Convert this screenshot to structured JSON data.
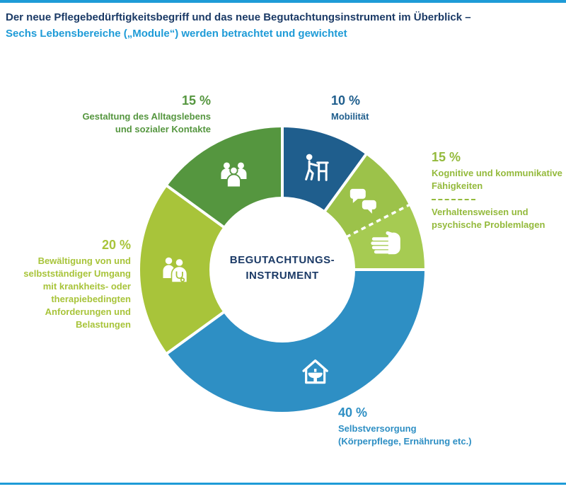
{
  "meta": {
    "language": "de",
    "accent_color": "#1e9bd7",
    "navy_color": "#1b3a66"
  },
  "header": {
    "title_line1": "Der neue Pflegebedürftigkeitsbegriff und das neue Begutachtungsinstrument im Überblick –",
    "title_line2": "Sechs Lebensbereiche („Module“) werden betrachtet und gewichtet",
    "title_color": "#1b3a66",
    "subtitle_color": "#1e9bd7"
  },
  "chart_data": {
    "type": "pie",
    "variant": "donut",
    "start_angle_deg": 0,
    "direction": "clockwise",
    "center_label": [
      "BEGUTACHTUNGS-",
      "INSTRUMENT"
    ],
    "center_label_color": "#1b3a66",
    "weights": [
      {
        "module": "Mobilität",
        "weight_pct": 10
      },
      {
        "module": "Kognitive und kommunikative Fähigkeiten / Verhaltensweisen und psychische Problemlagen",
        "weight_pct": 15
      },
      {
        "module": "Selbstversorgung (Körperpflege, Ernährung etc.)",
        "weight_pct": 40
      },
      {
        "module": "Bewältigung von und selbstständiger Umgang mit krankheits- oder therapiebedingten Anforderungen und Belastungen",
        "weight_pct": 20
      },
      {
        "module": "Gestaltung des Alltagslebens und sozialer Kontakte",
        "weight_pct": 15
      }
    ],
    "segments": [
      {
        "id": "mobilitaet",
        "label": "Mobilität",
        "display_value": "10 %",
        "value": 10,
        "color": "#1f5e8d",
        "icon": "walker-icon"
      },
      {
        "id": "kognitive-faehigkeiten",
        "label": "Kognitive und kommunikative Fähigkeiten",
        "group_display_value": "15 %",
        "value": 7.5,
        "color": "#9cc24a",
        "icon": "speech-bubbles-icon"
      },
      {
        "id": "verhaltensweisen",
        "label": "Verhaltensweisen und psychische Problemlagen",
        "group_display_value": "15 %",
        "value": 7.5,
        "color": "#a6cb52",
        "icon": "hand-icon",
        "divider_before": "dashed"
      },
      {
        "id": "selbstversorgung",
        "label": "Selbstversorgung (Körperpflege, Ernährung etc.)",
        "display_value": "40 %",
        "value": 40,
        "color": "#2e8fc4",
        "icon": "house-icon"
      },
      {
        "id": "bewaeltigung",
        "label": "Bewältigung von und selbstständiger Umgang mit krankheits- oder therapiebedingten Anforderungen und Belastungen",
        "display_value": "20 %",
        "value": 20,
        "color": "#a8c43a",
        "icon": "doctor-icon"
      },
      {
        "id": "gestaltung",
        "label": "Gestaltung des Alltagslebens und sozialer Kontakte",
        "display_value": "15 %",
        "value": 15,
        "color": "#55963f",
        "icon": "people-group-icon"
      }
    ]
  },
  "callouts": {
    "gestaltung": {
      "pct": "15 %",
      "lines": [
        "Gestaltung des Alltagslebens",
        "und sozialer Kontakte"
      ],
      "color": "#55963f"
    },
    "mobilitaet": {
      "pct": "10 %",
      "lines": [
        "Mobilität"
      ],
      "color": "#1f5e8d"
    },
    "kognitiv": {
      "pct": "15 %",
      "lines_top": [
        "Kognitive und kommunikative",
        "Fähigkeiten"
      ],
      "lines_bottom": [
        "Verhaltensweisen und",
        "psychische Problemlagen"
      ],
      "color": "#94ba3c"
    },
    "bewaeltigung": {
      "pct": "20 %",
      "lines": [
        "Bewältigung von und",
        "selbstständiger Umgang",
        "mit krankheits- oder",
        "therapiebedingten",
        "Anforderungen und",
        "Belastungen"
      ],
      "color": "#a8c43a"
    },
    "selbstversorgung": {
      "pct": "40 %",
      "lines": [
        "Selbstversorgung",
        "(Körperpflege, Ernährung etc.)"
      ],
      "color": "#2e8fc4"
    }
  }
}
